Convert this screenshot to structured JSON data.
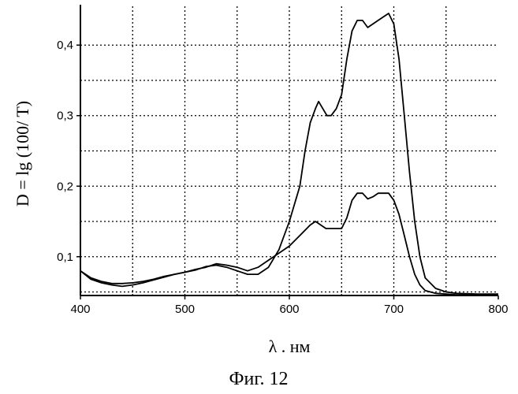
{
  "chart_data": {
    "type": "line",
    "xlabel": "λ . нм",
    "ylabel": "D = lg (100/ T)",
    "caption": "Фиг. 12",
    "xlim": [
      400,
      800
    ],
    "ylim": [
      0.045,
      0.455
    ],
    "x_ticks": [
      400,
      500,
      600,
      700,
      800
    ],
    "x_tick_labels": [
      "400",
      "500",
      "600",
      "700",
      "800"
    ],
    "y_ticks": [
      0.1,
      0.2,
      0.3,
      0.4
    ],
    "y_tick_labels": [
      "0,1",
      "0,2",
      "0,3",
      "0,4"
    ],
    "x_grid": [
      450,
      500,
      550,
      600,
      650,
      700,
      750
    ],
    "y_grid": [
      0.05,
      0.1,
      0.15,
      0.2,
      0.25,
      0.3,
      0.35,
      0.4
    ],
    "grid": true,
    "series": [
      {
        "x": [
          400,
          410,
          420,
          430,
          440,
          450,
          460,
          470,
          480,
          490,
          500,
          510,
          520,
          530,
          540,
          550,
          560,
          570,
          580,
          590,
          600,
          610,
          615,
          620,
          625,
          628,
          632,
          636,
          640,
          645,
          650,
          655,
          660,
          665,
          670,
          675,
          680,
          685,
          690,
          695,
          700,
          705,
          710,
          715,
          720,
          725,
          730,
          740,
          750,
          760,
          780,
          800
        ],
        "y": [
          0.08,
          0.07,
          0.065,
          0.062,
          0.062,
          0.063,
          0.065,
          0.068,
          0.072,
          0.075,
          0.078,
          0.081,
          0.086,
          0.088,
          0.085,
          0.08,
          0.075,
          0.075,
          0.085,
          0.11,
          0.15,
          0.2,
          0.25,
          0.29,
          0.31,
          0.32,
          0.31,
          0.3,
          0.3,
          0.31,
          0.33,
          0.38,
          0.42,
          0.435,
          0.435,
          0.425,
          0.43,
          0.435,
          0.44,
          0.445,
          0.43,
          0.38,
          0.3,
          0.22,
          0.15,
          0.1,
          0.07,
          0.055,
          0.05,
          0.048,
          0.047,
          0.047
        ]
      },
      {
        "x": [
          400,
          410,
          420,
          430,
          440,
          450,
          460,
          470,
          480,
          490,
          500,
          510,
          520,
          530,
          540,
          550,
          560,
          570,
          580,
          590,
          600,
          610,
          620,
          625,
          630,
          635,
          640,
          650,
          655,
          660,
          665,
          670,
          675,
          680,
          685,
          690,
          695,
          700,
          705,
          710,
          715,
          720,
          725,
          730,
          740,
          750,
          760,
          780,
          800
        ],
        "y": [
          0.08,
          0.068,
          0.063,
          0.06,
          0.058,
          0.06,
          0.063,
          0.067,
          0.071,
          0.075,
          0.078,
          0.082,
          0.085,
          0.09,
          0.088,
          0.085,
          0.08,
          0.085,
          0.095,
          0.105,
          0.115,
          0.13,
          0.145,
          0.15,
          0.145,
          0.14,
          0.14,
          0.14,
          0.155,
          0.18,
          0.19,
          0.19,
          0.182,
          0.185,
          0.19,
          0.19,
          0.19,
          0.18,
          0.16,
          0.13,
          0.1,
          0.075,
          0.06,
          0.052,
          0.048,
          0.047,
          0.046,
          0.046,
          0.046
        ]
      }
    ]
  }
}
